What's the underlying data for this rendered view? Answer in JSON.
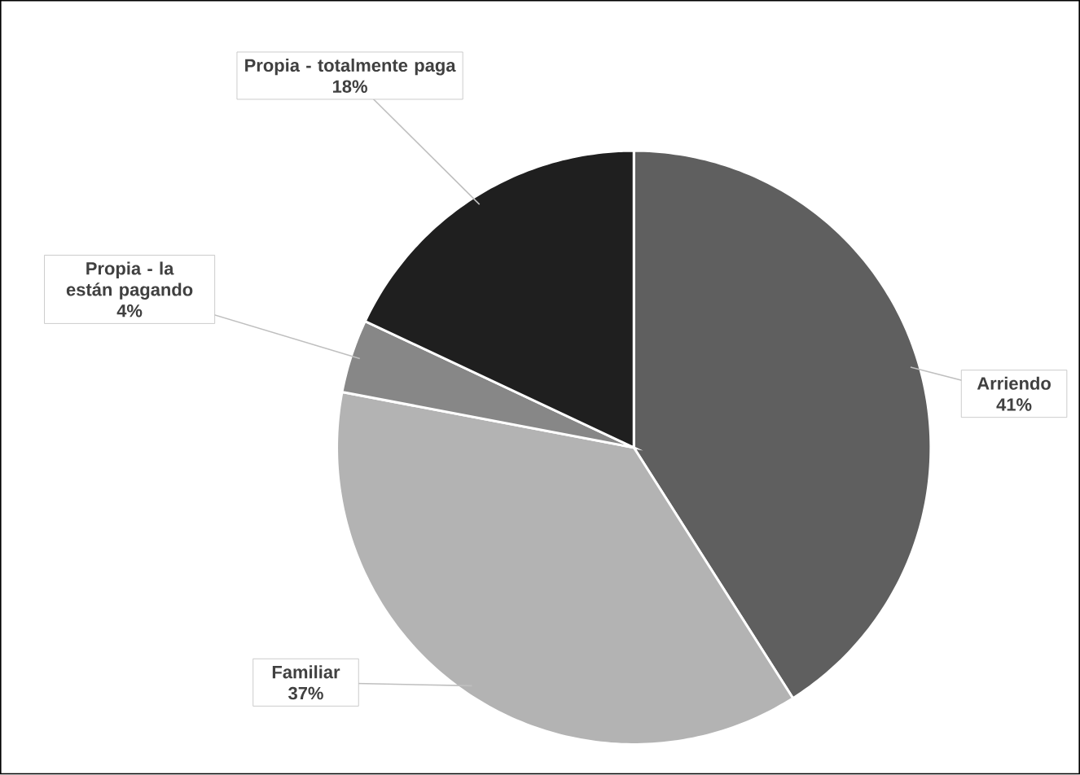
{
  "chart_data": {
    "type": "pie",
    "categories": [
      "Arriendo",
      "Familiar",
      "Propia - la están pagando",
      "Propia - totalmente paga"
    ],
    "values": [
      41,
      37,
      4,
      18
    ],
    "colors": [
      "#5f5f5f",
      "#b3b3b3",
      "#878787",
      "#1f1f1f"
    ],
    "value_labels": [
      "41%",
      "37%",
      "4%",
      "18%"
    ]
  }
}
